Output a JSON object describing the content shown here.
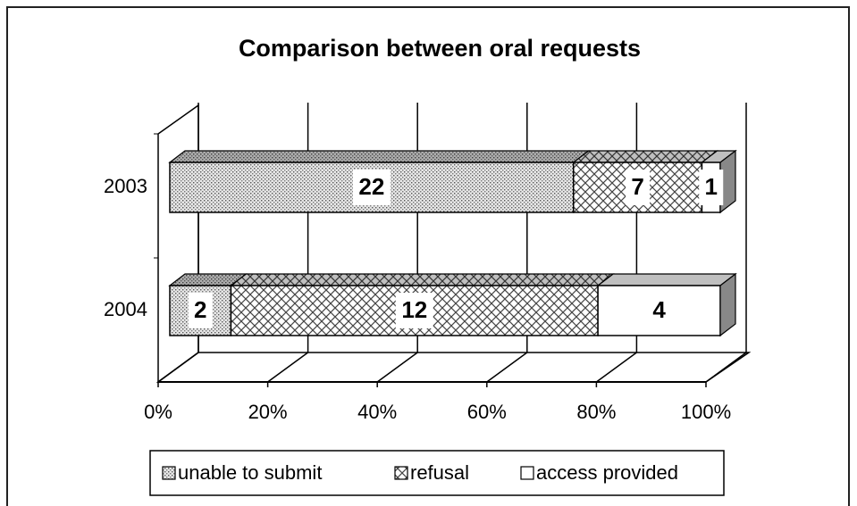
{
  "chart_data": {
    "type": "bar",
    "orientation": "horizontal",
    "stacked": "percent",
    "title": "Comparison between oral requests",
    "categories": [
      "2003",
      "2004"
    ],
    "series": [
      {
        "name": "unable to submit",
        "color": "#d8d8d8",
        "pattern": "dots",
        "values": [
          22,
          2
        ]
      },
      {
        "name": "refusal",
        "color": "#ffffff",
        "pattern": "cross",
        "values": [
          7,
          12
        ]
      },
      {
        "name": "access provided",
        "color": "#ffffff",
        "pattern": "none",
        "values": [
          1,
          4
        ]
      }
    ],
    "xlim": [
      0,
      100
    ],
    "xticks": [
      {
        "value": 0,
        "label": "0%"
      },
      {
        "value": 20,
        "label": "20%"
      },
      {
        "value": 40,
        "label": "40%"
      },
      {
        "value": 60,
        "label": "60%"
      },
      {
        "value": 80,
        "label": "80%"
      },
      {
        "value": 100,
        "label": "100%"
      }
    ],
    "grid": true,
    "legend": "bottom"
  }
}
